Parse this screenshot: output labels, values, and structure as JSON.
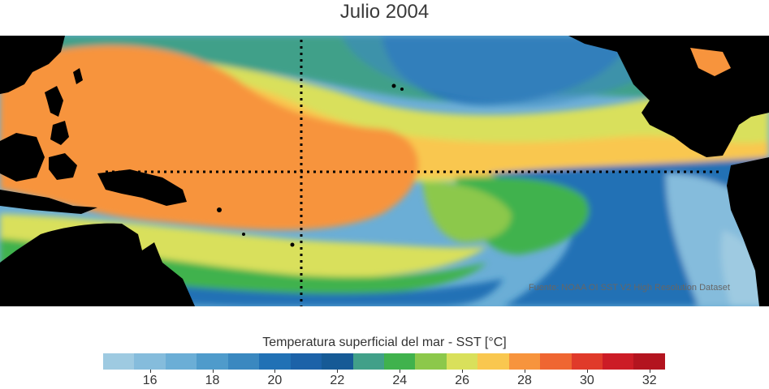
{
  "title": "Julio 2004",
  "source": "Fuente: NOAA OI SST V2 High Resolution Dataset",
  "colorbar": {
    "label": "Temperatura superficial del mar - SST  [°C]",
    "min": 15,
    "max": 33,
    "step": 1,
    "ticks": [
      16,
      18,
      20,
      22,
      24,
      26,
      28,
      30,
      32
    ],
    "colors": [
      "#9ecae1",
      "#85bcdc",
      "#6baed6",
      "#4f9bcb",
      "#3a88c0",
      "#2171b5",
      "#1c62a8",
      "#165a96",
      "#41a089",
      "#40b24d",
      "#8cc84b",
      "#d9e05b",
      "#f9c74f",
      "#f7943d",
      "#ef6631",
      "#e03a2a",
      "#cc1c26",
      "#b3141f"
    ]
  },
  "map": {
    "land_color": "#000000",
    "equator_line": "dotted",
    "meridian_line": "dotted"
  }
}
